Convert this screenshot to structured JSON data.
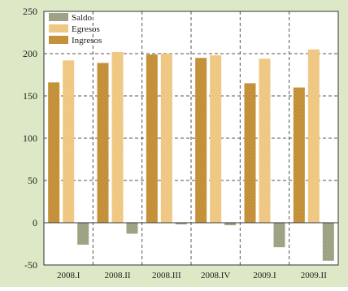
{
  "chart_data": {
    "type": "bar",
    "title": "",
    "xlabel": "",
    "ylabel": "",
    "ylim": [
      -50,
      250
    ],
    "yticks": [
      -50,
      0,
      50,
      100,
      150,
      200,
      250
    ],
    "grid": true,
    "legend_position": "top-left",
    "categories": [
      "2008.I",
      "2008.II",
      "2008.III",
      "2008.IV",
      "2009.I",
      "2009.II"
    ],
    "series": [
      {
        "name": "Ingresos",
        "color": "#c9953e",
        "values": [
          166,
          189,
          199,
          195,
          165,
          160
        ]
      },
      {
        "name": "Egresos",
        "color": "#f2cc8a",
        "values": [
          192,
          202,
          200,
          198,
          194,
          205
        ]
      },
      {
        "name": "Saldo",
        "color": "#a9ad8e",
        "values": [
          -26,
          -13,
          -2,
          -3,
          -29,
          -45
        ]
      }
    ],
    "legend_order": [
      "Saldo",
      "Egresos",
      "Ingresos"
    ]
  },
  "colors": {
    "frame_background": "#dde9c6",
    "plot_background": "#ffffff"
  }
}
